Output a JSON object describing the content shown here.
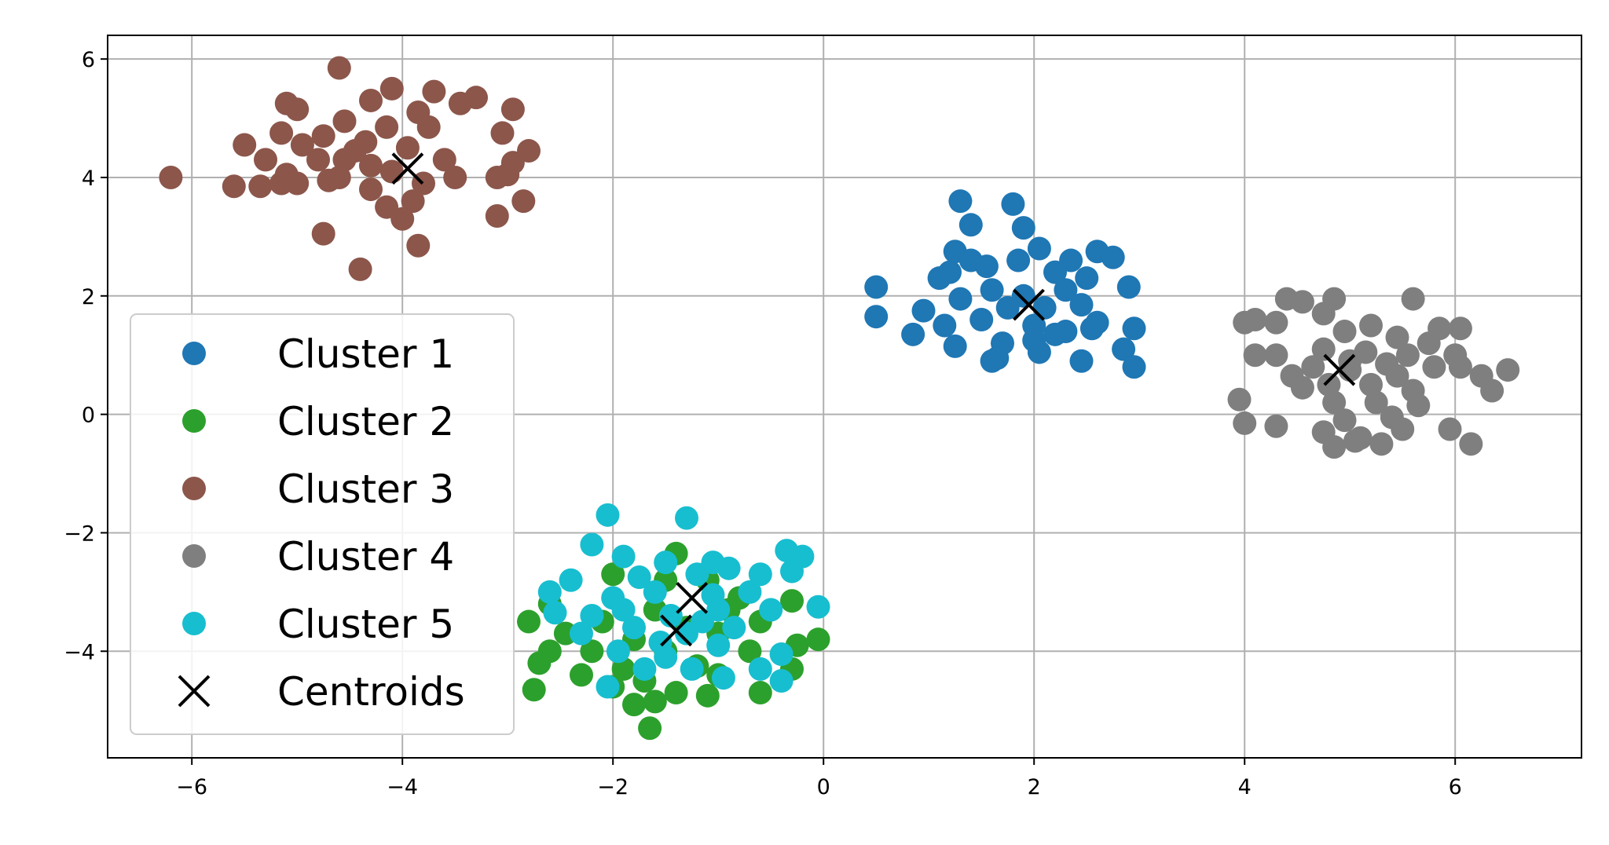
{
  "chart_data": {
    "type": "scatter",
    "title": "",
    "xlabel": "",
    "ylabel": "",
    "xlim": [
      -6.8,
      7.2
    ],
    "ylim": [
      -5.8,
      6.4
    ],
    "x_ticks": [
      -6,
      -4,
      -2,
      0,
      2,
      4,
      6
    ],
    "y_ticks": [
      -4,
      -2,
      0,
      2,
      4,
      6
    ],
    "x_tick_labels": [
      "−6",
      "−4",
      "−2",
      "0",
      "2",
      "4",
      "6"
    ],
    "y_tick_labels": [
      "−4",
      "−2",
      "0",
      "2",
      "4",
      "6"
    ],
    "grid": true,
    "legend_position": "lower-left",
    "series": [
      {
        "name": "Cluster 1",
        "color": "#1f77b4",
        "points": [
          [
            1.3,
            3.6
          ],
          [
            1.8,
            3.55
          ],
          [
            1.4,
            3.2
          ],
          [
            1.9,
            3.15
          ],
          [
            1.25,
            2.75
          ],
          [
            1.4,
            2.6
          ],
          [
            1.85,
            2.6
          ],
          [
            2.05,
            2.8
          ],
          [
            2.35,
            2.6
          ],
          [
            2.6,
            2.75
          ],
          [
            2.75,
            2.65
          ],
          [
            1.2,
            2.4
          ],
          [
            1.55,
            2.5
          ],
          [
            2.2,
            2.4
          ],
          [
            2.5,
            2.3
          ],
          [
            0.5,
            2.15
          ],
          [
            1.1,
            2.3
          ],
          [
            1.6,
            2.1
          ],
          [
            2.3,
            2.1
          ],
          [
            2.9,
            2.15
          ],
          [
            0.95,
            1.75
          ],
          [
            1.3,
            1.95
          ],
          [
            1.75,
            1.8
          ],
          [
            2.1,
            1.8
          ],
          [
            2.45,
            1.85
          ],
          [
            0.5,
            1.65
          ],
          [
            1.15,
            1.5
          ],
          [
            1.5,
            1.6
          ],
          [
            2.0,
            1.5
          ],
          [
            2.3,
            1.4
          ],
          [
            2.6,
            1.55
          ],
          [
            2.95,
            1.45
          ],
          [
            0.85,
            1.35
          ],
          [
            1.25,
            1.15
          ],
          [
            1.7,
            1.2
          ],
          [
            2.0,
            1.25
          ],
          [
            2.2,
            1.35
          ],
          [
            1.65,
            0.95
          ],
          [
            2.05,
            1.05
          ],
          [
            2.45,
            0.9
          ],
          [
            2.85,
            1.1
          ],
          [
            2.95,
            0.8
          ],
          [
            1.6,
            0.9
          ],
          [
            2.55,
            1.45
          ],
          [
            1.9,
            2.0
          ]
        ]
      },
      {
        "name": "Cluster 2",
        "color": "#2ca02c",
        "points": [
          [
            -1.4,
            -2.35
          ],
          [
            -2.0,
            -2.7
          ],
          [
            -1.1,
            -2.8
          ],
          [
            -0.3,
            -3.15
          ],
          [
            -2.6,
            -3.2
          ],
          [
            -1.6,
            -3.3
          ],
          [
            -0.8,
            -3.1
          ],
          [
            -2.8,
            -3.5
          ],
          [
            -2.1,
            -3.5
          ],
          [
            -1.3,
            -3.6
          ],
          [
            -0.6,
            -3.5
          ],
          [
            -2.45,
            -3.7
          ],
          [
            -1.8,
            -3.8
          ],
          [
            -1.0,
            -3.7
          ],
          [
            -0.25,
            -3.9
          ],
          [
            -0.05,
            -3.8
          ],
          [
            -2.6,
            -4.0
          ],
          [
            -2.2,
            -4.0
          ],
          [
            -1.5,
            -4.0
          ],
          [
            -0.7,
            -4.0
          ],
          [
            -2.7,
            -4.2
          ],
          [
            -1.9,
            -4.3
          ],
          [
            -1.2,
            -4.25
          ],
          [
            -0.3,
            -4.3
          ],
          [
            -2.3,
            -4.4
          ],
          [
            -1.7,
            -4.5
          ],
          [
            -1.0,
            -4.4
          ],
          [
            -2.0,
            -4.6
          ],
          [
            -1.4,
            -4.7
          ],
          [
            -0.6,
            -4.7
          ],
          [
            -1.8,
            -4.9
          ],
          [
            -1.6,
            -4.85
          ],
          [
            -2.75,
            -4.65
          ],
          [
            -1.1,
            -4.75
          ],
          [
            -1.65,
            -5.3
          ],
          [
            -1.5,
            -2.8
          ],
          [
            -0.9,
            -3.3
          ]
        ]
      },
      {
        "name": "Cluster 3",
        "color": "#8c564b",
        "points": [
          [
            -4.6,
            5.85
          ],
          [
            -4.1,
            5.5
          ],
          [
            -3.7,
            5.45
          ],
          [
            -3.3,
            5.35
          ],
          [
            -5.1,
            5.25
          ],
          [
            -4.3,
            5.3
          ],
          [
            -3.85,
            5.1
          ],
          [
            -3.45,
            5.25
          ],
          [
            -2.95,
            5.15
          ],
          [
            -5.0,
            5.15
          ],
          [
            -4.55,
            4.95
          ],
          [
            -4.15,
            4.85
          ],
          [
            -3.75,
            4.85
          ],
          [
            -3.05,
            4.75
          ],
          [
            -5.15,
            4.75
          ],
          [
            -4.75,
            4.7
          ],
          [
            -4.35,
            4.6
          ],
          [
            -5.5,
            4.55
          ],
          [
            -4.95,
            4.55
          ],
          [
            -4.45,
            4.45
          ],
          [
            -3.95,
            4.5
          ],
          [
            -2.8,
            4.45
          ],
          [
            -5.3,
            4.3
          ],
          [
            -4.8,
            4.3
          ],
          [
            -4.3,
            4.2
          ],
          [
            -3.6,
            4.3
          ],
          [
            -2.95,
            4.25
          ],
          [
            -5.1,
            4.05
          ],
          [
            -4.6,
            4.0
          ],
          [
            -4.1,
            4.1
          ],
          [
            -3.5,
            4.0
          ],
          [
            -3.0,
            4.05
          ],
          [
            -6.2,
            4.0
          ],
          [
            -5.6,
            3.85
          ],
          [
            -5.35,
            3.85
          ],
          [
            -5.0,
            3.9
          ],
          [
            -4.7,
            3.95
          ],
          [
            -4.3,
            3.8
          ],
          [
            -3.8,
            3.9
          ],
          [
            -3.1,
            4.0
          ],
          [
            -3.9,
            3.6
          ],
          [
            -2.85,
            3.6
          ],
          [
            -4.15,
            3.5
          ],
          [
            -4.0,
            3.3
          ],
          [
            -3.1,
            3.35
          ],
          [
            -4.75,
            3.05
          ],
          [
            -3.85,
            2.85
          ],
          [
            -4.4,
            2.45
          ],
          [
            -5.15,
            3.9
          ],
          [
            -4.55,
            4.3
          ]
        ]
      },
      {
        "name": "Cluster 4",
        "color": "#7f7f7f",
        "points": [
          [
            4.4,
            1.95
          ],
          [
            4.55,
            1.9
          ],
          [
            4.85,
            1.95
          ],
          [
            5.6,
            1.95
          ],
          [
            4.1,
            1.6
          ],
          [
            4.3,
            1.55
          ],
          [
            4.75,
            1.7
          ],
          [
            5.2,
            1.5
          ],
          [
            5.85,
            1.45
          ],
          [
            6.05,
            1.45
          ],
          [
            4.0,
            1.55
          ],
          [
            4.95,
            1.4
          ],
          [
            5.45,
            1.3
          ],
          [
            5.75,
            1.2
          ],
          [
            4.1,
            1.0
          ],
          [
            4.3,
            1.0
          ],
          [
            4.75,
            1.1
          ],
          [
            5.15,
            1.05
          ],
          [
            5.55,
            1.0
          ],
          [
            6.0,
            1.0
          ],
          [
            4.45,
            0.65
          ],
          [
            4.65,
            0.8
          ],
          [
            5.0,
            0.9
          ],
          [
            5.35,
            0.85
          ],
          [
            5.8,
            0.8
          ],
          [
            6.25,
            0.65
          ],
          [
            6.5,
            0.75
          ],
          [
            4.55,
            0.45
          ],
          [
            4.8,
            0.5
          ],
          [
            5.2,
            0.5
          ],
          [
            5.6,
            0.4
          ],
          [
            6.05,
            0.8
          ],
          [
            6.35,
            0.4
          ],
          [
            3.95,
            0.25
          ],
          [
            4.85,
            0.2
          ],
          [
            5.25,
            0.2
          ],
          [
            5.65,
            0.15
          ],
          [
            4.0,
            -0.15
          ],
          [
            4.3,
            -0.2
          ],
          [
            4.95,
            -0.1
          ],
          [
            5.4,
            -0.05
          ],
          [
            5.95,
            -0.25
          ],
          [
            4.75,
            -0.3
          ],
          [
            5.1,
            -0.4
          ],
          [
            5.5,
            -0.25
          ],
          [
            4.85,
            -0.55
          ],
          [
            5.3,
            -0.5
          ],
          [
            6.15,
            -0.5
          ],
          [
            5.05,
            -0.45
          ],
          [
            5.0,
            0.75
          ],
          [
            5.45,
            0.65
          ]
        ]
      },
      {
        "name": "Cluster 5",
        "color": "#17becf",
        "points": [
          [
            -2.05,
            -1.7
          ],
          [
            -1.3,
            -1.75
          ],
          [
            -2.2,
            -2.2
          ],
          [
            -1.9,
            -2.4
          ],
          [
            -1.5,
            -2.5
          ],
          [
            -1.05,
            -2.5
          ],
          [
            -0.35,
            -2.3
          ],
          [
            -0.2,
            -2.4
          ],
          [
            -2.4,
            -2.8
          ],
          [
            -1.75,
            -2.75
          ],
          [
            -1.2,
            -2.7
          ],
          [
            -0.9,
            -2.6
          ],
          [
            -0.6,
            -2.7
          ],
          [
            -0.3,
            -2.65
          ],
          [
            -2.6,
            -3.0
          ],
          [
            -2.0,
            -3.1
          ],
          [
            -1.6,
            -3.0
          ],
          [
            -1.05,
            -3.05
          ],
          [
            -0.7,
            -3.0
          ],
          [
            -0.05,
            -3.25
          ],
          [
            -2.55,
            -3.35
          ],
          [
            -2.2,
            -3.4
          ],
          [
            -1.9,
            -3.3
          ],
          [
            -1.45,
            -3.4
          ],
          [
            -1.0,
            -3.3
          ],
          [
            -0.5,
            -3.3
          ],
          [
            -2.3,
            -3.7
          ],
          [
            -1.8,
            -3.6
          ],
          [
            -1.3,
            -3.7
          ],
          [
            -0.85,
            -3.6
          ],
          [
            -1.95,
            -4.0
          ],
          [
            -1.5,
            -4.1
          ],
          [
            -1.0,
            -3.9
          ],
          [
            -0.4,
            -4.05
          ],
          [
            -1.7,
            -4.3
          ],
          [
            -1.25,
            -4.3
          ],
          [
            -0.6,
            -4.3
          ],
          [
            -2.05,
            -4.6
          ],
          [
            -0.95,
            -4.45
          ],
          [
            -0.4,
            -4.5
          ],
          [
            -1.55,
            -3.85
          ],
          [
            -1.15,
            -3.5
          ]
        ]
      }
    ],
    "centroids": {
      "name": "Centroids",
      "color": "#000000",
      "points": [
        [
          1.95,
          1.85
        ],
        [
          -1.4,
          -3.65
        ],
        [
          -3.95,
          4.15
        ],
        [
          4.9,
          0.75
        ],
        [
          -1.25,
          -3.1
        ]
      ]
    }
  }
}
